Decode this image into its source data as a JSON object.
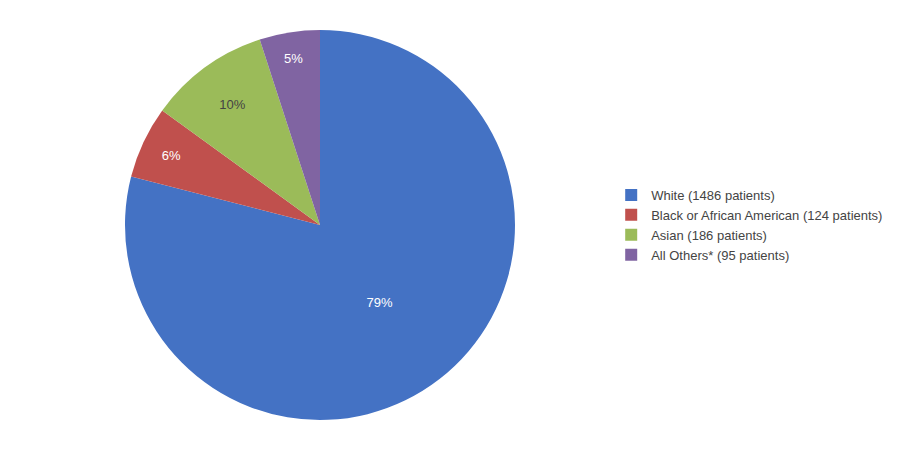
{
  "chart_data": {
    "type": "pie",
    "categories": [
      "White (1486 patients)",
      "Black or African American (124 patients)",
      "Asian (186 patients)",
      "All Others* (95 patients)"
    ],
    "values": [
      79,
      6,
      10,
      5
    ],
    "value_labels": [
      "79%",
      "6%",
      "10%",
      "5%"
    ],
    "colors": [
      "#4472C4",
      "#C0504D",
      "#9BBB59",
      "#8064A2"
    ],
    "legend": "right"
  }
}
